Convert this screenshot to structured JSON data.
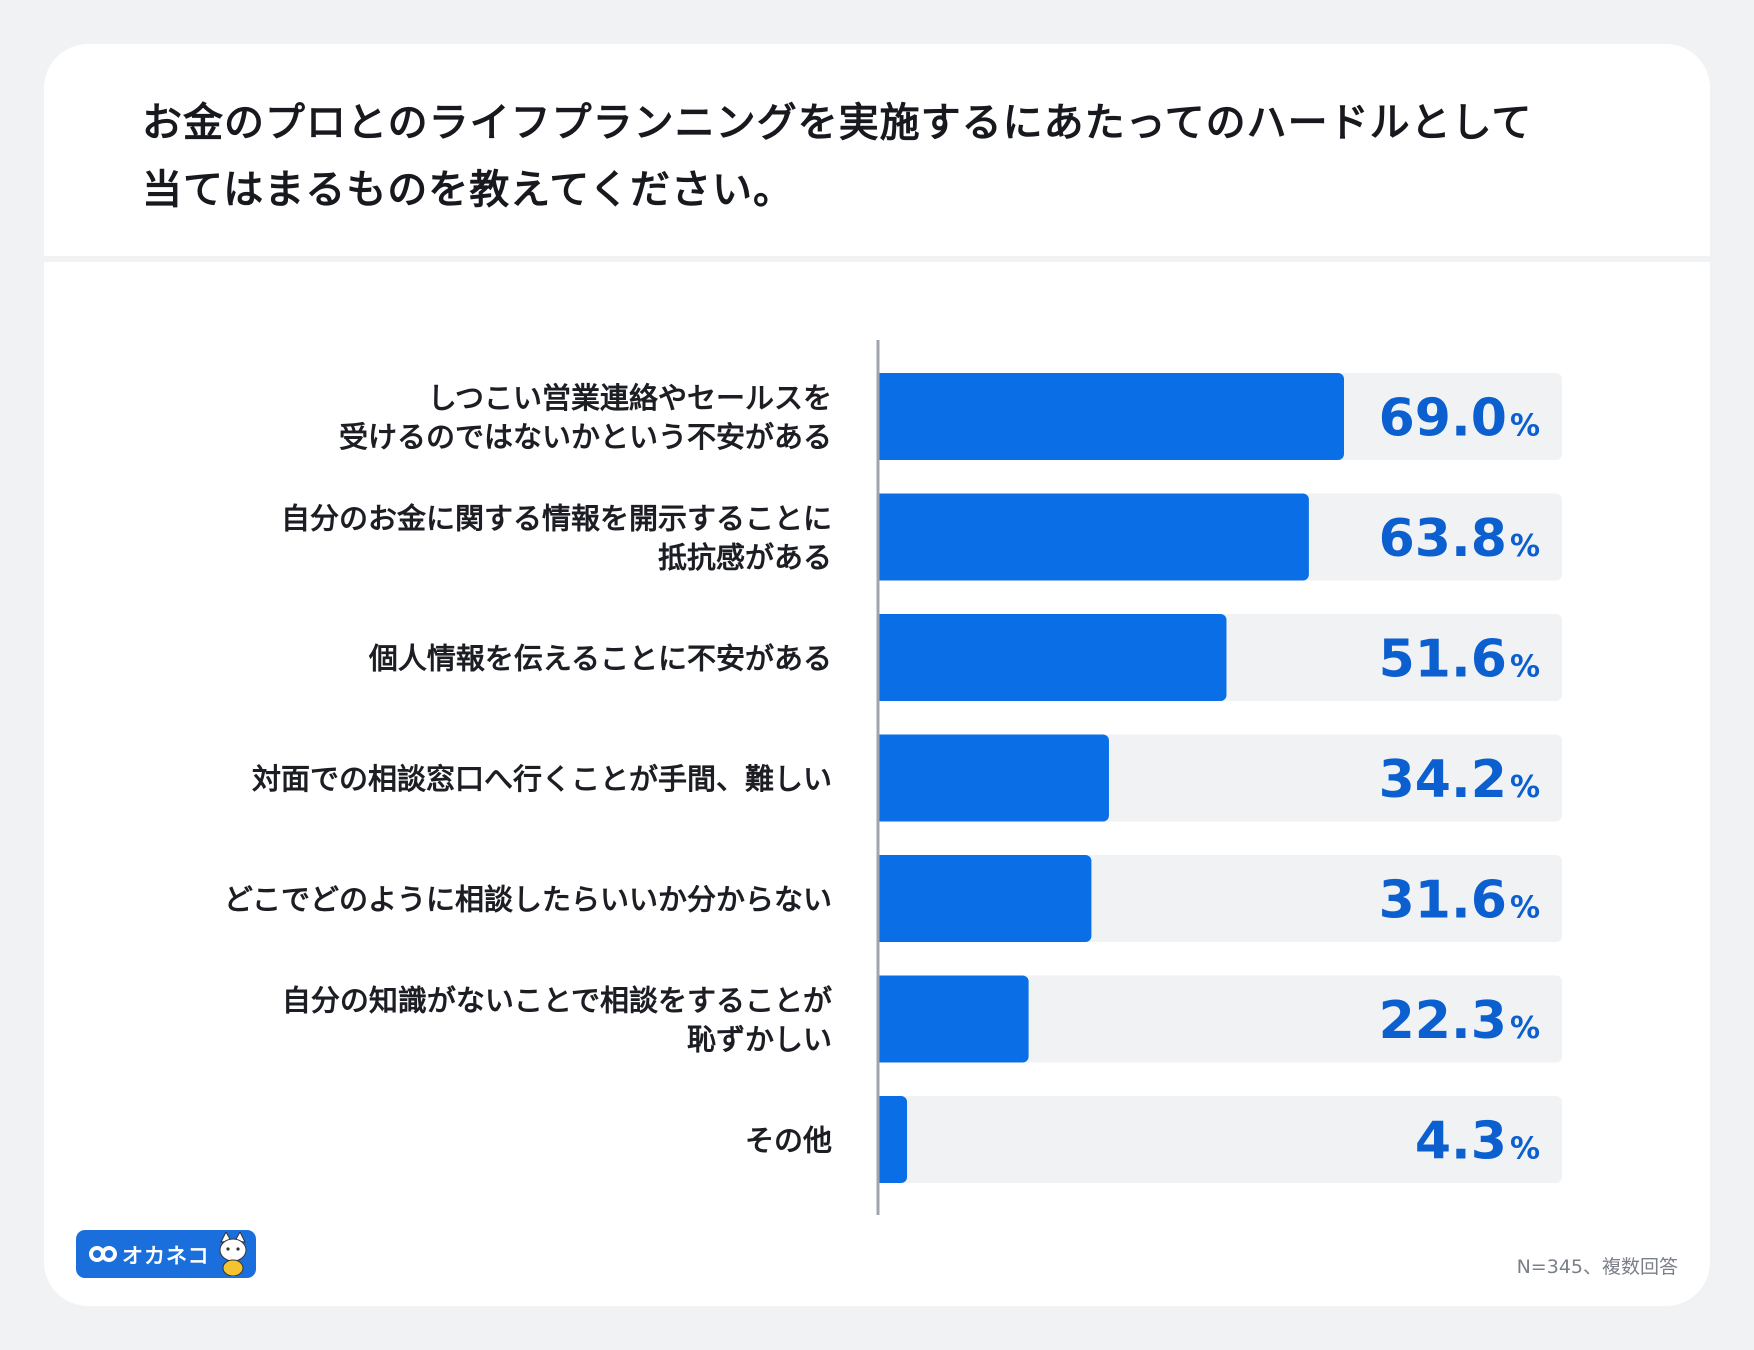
{
  "title_lines": [
    "お金のプロとのライフプランニングを実施するにあたってのハードルとして",
    "当てはまるものを教えてください。"
  ],
  "chart_data": {
    "type": "bar",
    "orientation": "horizontal",
    "title": "お金のプロとのライフプランニングを実施するにあたってのハードルとして当てはまるものを教えてください。",
    "unit": "%",
    "xlim": [
      0,
      100
    ],
    "categories": [
      [
        "しつこい営業連絡やセールスを",
        "受けるのではないかという不安がある"
      ],
      [
        "自分のお金に関する情報を開示することに",
        "抵抗感がある"
      ],
      [
        "個人情報を伝えることに不安がある"
      ],
      [
        "対面での相談窓口へ行くことが手間、難しい"
      ],
      [
        "どこでどのように相談したらいいか分からない"
      ],
      [
        "自分の知識がないことで相談をすることが",
        "恥ずかしい"
      ],
      [
        "その他"
      ]
    ],
    "values": [
      69.0,
      63.8,
      51.6,
      34.2,
      31.6,
      22.3,
      4.3
    ],
    "value_labels": [
      "69.0",
      "63.8",
      "51.6",
      "34.2",
      "31.6",
      "22.3",
      "4.3"
    ],
    "bar_color": "#0a6fe6",
    "track_color": "#f1f2f4",
    "value_color": "#0b5fcf"
  },
  "footnote": "N=345、複数回答",
  "logo": {
    "text": "オカネコ",
    "color": "#1b6fdc"
  }
}
